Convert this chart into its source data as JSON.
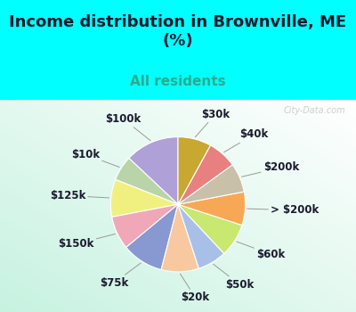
{
  "title": "Income distribution in Brownville, ME\n(%)",
  "subtitle": "All residents",
  "bg_cyan": "#00FFFF",
  "watermark": "City-Data.com",
  "labels": [
    "$100k",
    "$10k",
    "$125k",
    "$150k",
    "$75k",
    "$20k",
    "$50k",
    "$60k",
    "> $200k",
    "$200k",
    "$40k",
    "$30k"
  ],
  "values": [
    13,
    6,
    9,
    8,
    10,
    9,
    7,
    8,
    8,
    7,
    7,
    8
  ],
  "colors": [
    "#b0a0d8",
    "#b8d4a8",
    "#f0f080",
    "#f0a8b8",
    "#8898d0",
    "#f8c8a0",
    "#a8c0e8",
    "#c8e870",
    "#f8a855",
    "#c8c0a8",
    "#e88080",
    "#c8a830"
  ],
  "startangle": 90,
  "title_fontsize": 13,
  "subtitle_fontsize": 11,
  "label_fontsize": 8.5,
  "title_color": "#1a1a2e",
  "subtitle_color": "#2eaa8a",
  "label_color": "#1a1a2e",
  "watermark_color": "#aaaaaa"
}
